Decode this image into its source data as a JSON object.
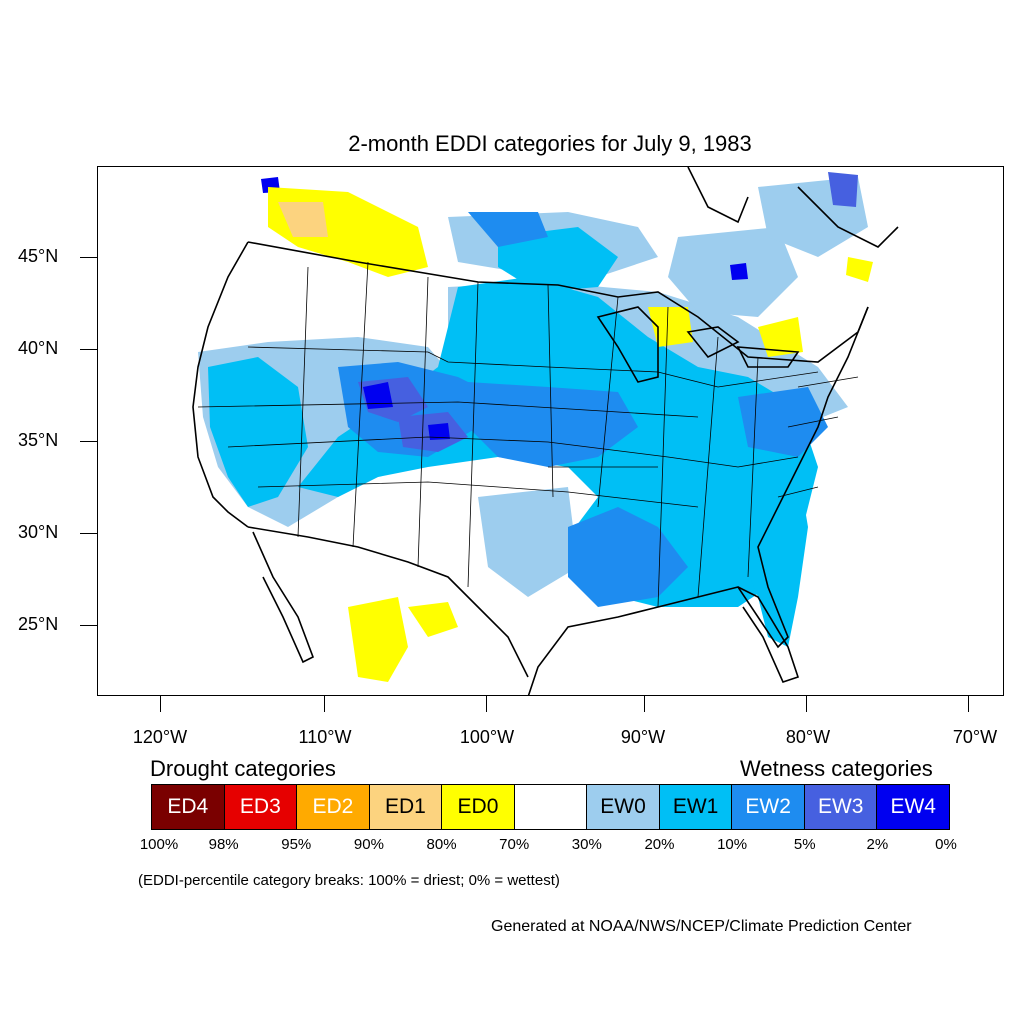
{
  "title": "2-month EDDI categories for July 9, 1983",
  "lat_labels": [
    "45°N",
    "40°N",
    "35°N",
    "30°N",
    "25°N"
  ],
  "lon_labels": [
    "120°W",
    "110°W",
    "100°W",
    "90°W",
    "80°W",
    "70°W"
  ],
  "legend": {
    "drought_heading": "Drought categories",
    "wetness_heading": "Wetness categories",
    "categories": [
      {
        "label": "ED4",
        "color": "#7a0000",
        "text_color": "#ffffff"
      },
      {
        "label": "ED3",
        "color": "#e60000",
        "text_color": "#ffffff"
      },
      {
        "label": "ED2",
        "color": "#ffaa00",
        "text_color": "#ffffff"
      },
      {
        "label": "ED1",
        "color": "#fcd37f",
        "text_color": "#000000"
      },
      {
        "label": "ED0",
        "color": "#ffff00",
        "text_color": "#000000"
      },
      {
        "label": "",
        "color": "#ffffff",
        "text_color": "#000000"
      },
      {
        "label": "EW0",
        "color": "#9dcdee",
        "text_color": "#000000"
      },
      {
        "label": "EW1",
        "color": "#00bff5",
        "text_color": "#000000"
      },
      {
        "label": "EW2",
        "color": "#1e8cf0",
        "text_color": "#ffffff"
      },
      {
        "label": "EW3",
        "color": "#4660e0",
        "text_color": "#ffffff"
      },
      {
        "label": "EW4",
        "color": "#0000f0",
        "text_color": "#ffffff"
      }
    ],
    "breaks": [
      "100%",
      "98%",
      "95%",
      "90%",
      "80%",
      "70%",
      "30%",
      "20%",
      "10%",
      "5%",
      "2%",
      "0%"
    ],
    "note": "(EDDI-percentile category breaks: 100% = driest; 0% = wettest)"
  },
  "credit": "Generated at NOAA/NWS/NCEP/Climate Prediction Center"
}
